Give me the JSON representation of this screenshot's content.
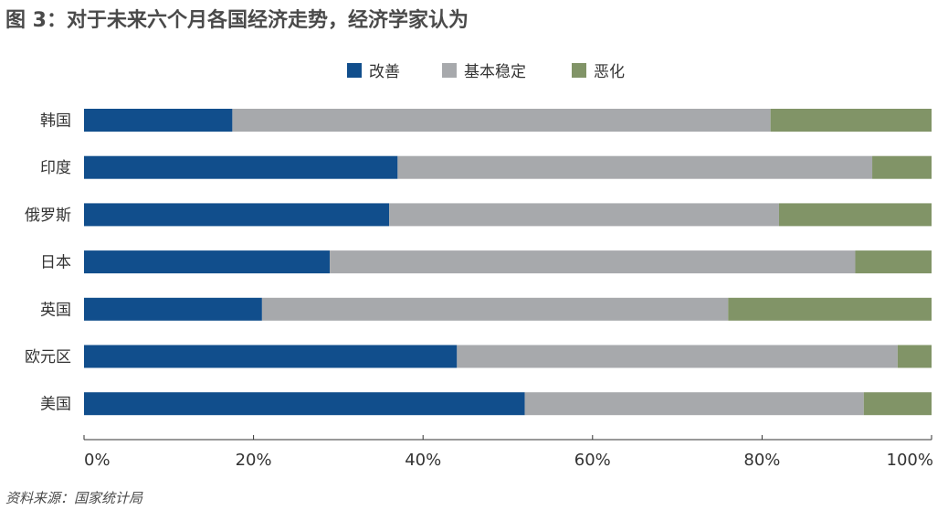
{
  "title": "图 3：对于未来六个月各国经济走势，经济学家认为",
  "source": "资料来源：国家统计局",
  "chart_data": {
    "type": "bar",
    "orientation": "horizontal",
    "stacked": true,
    "categories": [
      "韩国",
      "印度",
      "俄罗斯",
      "日本",
      "英国",
      "欧元区",
      "美国"
    ],
    "series": [
      {
        "name": "改善",
        "color": "#114e8c",
        "values": [
          17.5,
          37,
          36,
          29,
          21,
          44,
          52
        ]
      },
      {
        "name": "基本稳定",
        "color": "#a7a9ac",
        "values": [
          63.5,
          56,
          46,
          62,
          55,
          52,
          40
        ]
      },
      {
        "name": "恶化",
        "color": "#819467",
        "values": [
          19,
          7,
          18,
          9,
          24,
          4,
          8
        ]
      }
    ],
    "x_ticks": [
      "0%",
      "20%",
      "40%",
      "60%",
      "80%",
      "100%"
    ],
    "xlim": [
      0,
      100
    ],
    "legend_position": "top-center",
    "grid": false
  }
}
